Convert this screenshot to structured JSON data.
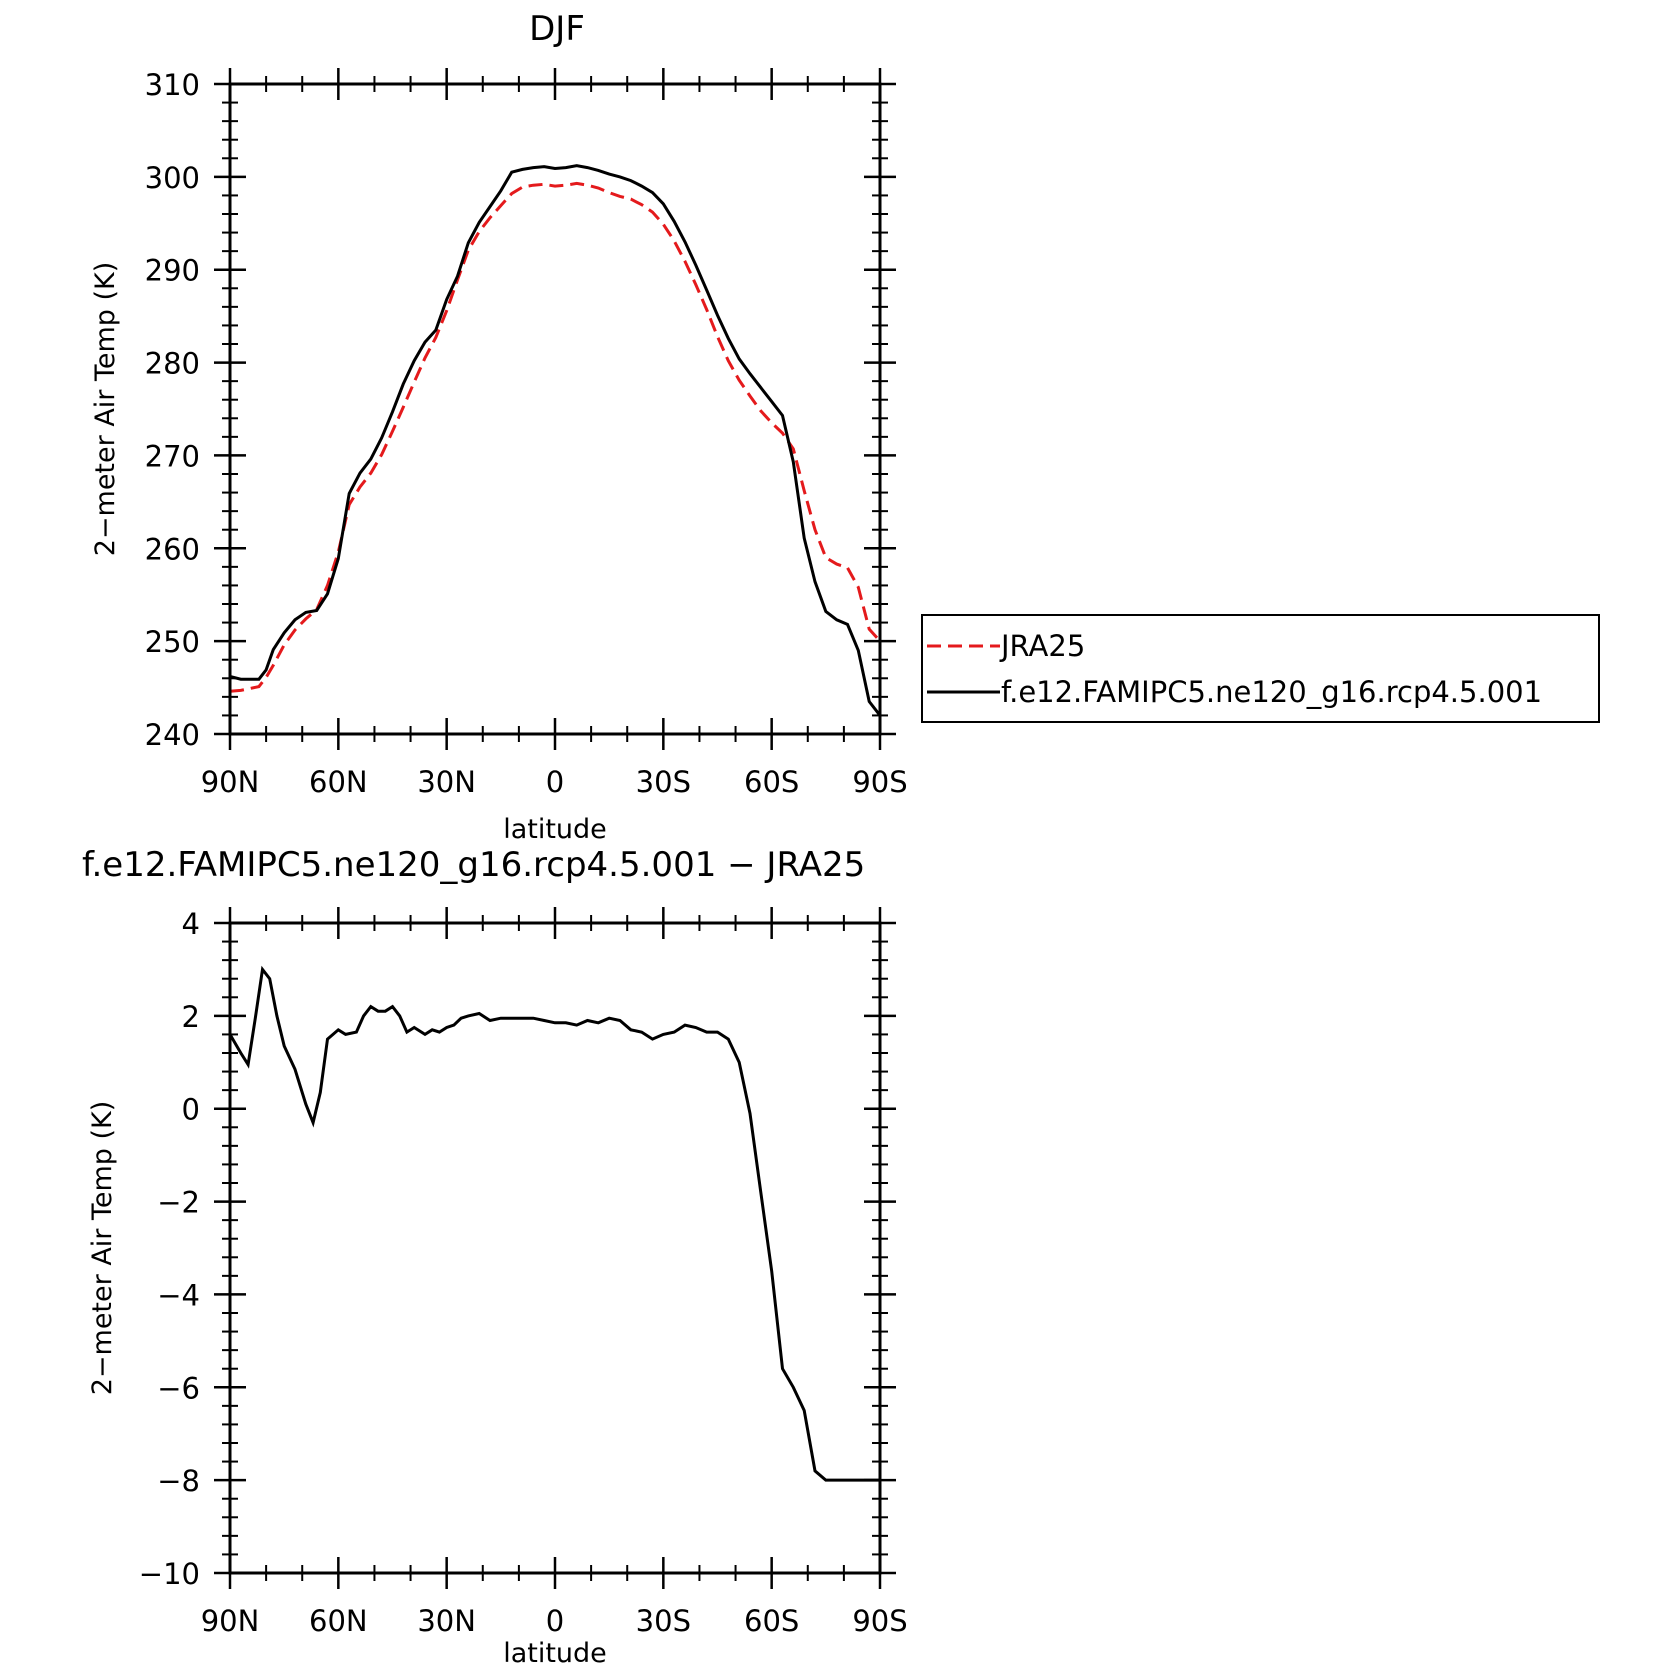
{
  "chart_data": [
    {
      "type": "line",
      "title": "DJF",
      "xlabel": "latitude",
      "ylabel": "2−meter Air Temp (K)",
      "xlim": [
        90,
        -90
      ],
      "ylim": [
        240,
        310
      ],
      "xticks": [
        90,
        60,
        30,
        0,
        -30,
        -60,
        -90
      ],
      "xtick_labels": [
        "90N",
        "60N",
        "30N",
        "0",
        "30S",
        "60S",
        "90S"
      ],
      "yticks": [
        240,
        250,
        260,
        270,
        280,
        290,
        300,
        310
      ],
      "ytick_labels": [
        "240",
        "250",
        "260",
        "270",
        "280",
        "290",
        "300",
        "310"
      ],
      "legend_position": "right",
      "series": [
        {
          "name": "JRA25",
          "color": "#e41a1c",
          "dash": "dashed",
          "x": [
            90,
            87,
            82,
            80,
            78,
            75,
            72,
            69,
            66,
            63,
            60,
            57,
            54,
            51,
            48,
            45,
            42,
            39,
            36,
            33,
            30,
            27,
            24,
            21,
            18,
            15,
            12,
            9,
            6,
            3,
            0,
            -3,
            -6,
            -9,
            -12,
            -15,
            -18,
            -21,
            -24,
            -27,
            -30,
            -33,
            -36,
            -39,
            -42,
            -45,
            -48,
            -51,
            -54,
            -57,
            -60,
            -63,
            -66,
            -69,
            -72,
            -75,
            -78,
            -81,
            -84,
            -87,
            -90
          ],
          "y": [
            244.6,
            244.7,
            245.1,
            246.1,
            247.4,
            249.6,
            251.2,
            252.4,
            253.4,
            256.0,
            259.6,
            264.7,
            266.6,
            268.1,
            270.1,
            272.6,
            275.2,
            277.9,
            280.5,
            282.7,
            285.6,
            288.9,
            292.1,
            294.1,
            295.6,
            296.9,
            298.2,
            298.9,
            299.1,
            299.2,
            299.0,
            299.1,
            299.3,
            299.1,
            298.8,
            298.3,
            297.9,
            297.6,
            297.0,
            296.2,
            294.9,
            293.1,
            290.9,
            288.4,
            285.7,
            282.8,
            280.2,
            278.1,
            276.4,
            274.8,
            273.5,
            272.4,
            270.7,
            266.2,
            262.0,
            259.0,
            258.3,
            257.9,
            255.8,
            251.3,
            250.0
          ]
        },
        {
          "name": "f.e12.FAMIPC5.ne120_g16.rcp4.5.001",
          "color": "#000000",
          "dash": "solid",
          "x": [
            90,
            87,
            82,
            80,
            78,
            75,
            72,
            69,
            66,
            63,
            60,
            57,
            54,
            51,
            48,
            45,
            42,
            39,
            36,
            33,
            30,
            27,
            24,
            21,
            18,
            15,
            12,
            9,
            6,
            3,
            0,
            -3,
            -6,
            -9,
            -12,
            -15,
            -18,
            -21,
            -24,
            -27,
            -30,
            -33,
            -36,
            -39,
            -42,
            -45,
            -48,
            -51,
            -54,
            -57,
            -60,
            -63,
            -66,
            -69,
            -72,
            -75,
            -78,
            -81,
            -84,
            -87,
            -90
          ],
          "y": [
            246.2,
            245.9,
            245.9,
            246.9,
            249.1,
            250.9,
            252.3,
            253.1,
            253.3,
            255.1,
            258.9,
            265.9,
            268.1,
            269.6,
            271.9,
            274.7,
            277.7,
            280.2,
            282.2,
            283.5,
            286.8,
            289.3,
            292.9,
            295.1,
            296.8,
            298.5,
            300.5,
            300.8,
            301.0,
            301.1,
            300.9,
            301.0,
            301.2,
            301.0,
            300.7,
            300.3,
            300.0,
            299.6,
            299.0,
            298.3,
            297.1,
            295.2,
            293.0,
            290.5,
            287.8,
            285.1,
            282.6,
            280.4,
            278.8,
            277.3,
            275.8,
            274.3,
            269.3,
            261.1,
            256.4,
            253.2,
            252.3,
            251.8,
            249.0,
            243.5,
            242.0
          ]
        }
      ]
    },
    {
      "type": "line",
      "title": "f.e12.FAMIPC5.ne120_g16.rcp4.5.001 − JRA25",
      "xlabel": "latitude",
      "ylabel": "2−meter Air Temp (K)",
      "xlim": [
        90,
        -90
      ],
      "ylim": [
        -10,
        4
      ],
      "xticks": [
        90,
        60,
        30,
        0,
        -30,
        -60,
        -90
      ],
      "xtick_labels": [
        "90N",
        "60N",
        "30N",
        "0",
        "30S",
        "60S",
        "90S"
      ],
      "yticks": [
        -10,
        -8,
        -6,
        -4,
        -2,
        0,
        2,
        4
      ],
      "ytick_labels": [
        "−10",
        "−8",
        "−6",
        "−4",
        "−2",
        "0",
        "2",
        "4"
      ],
      "series": [
        {
          "color": "#000000",
          "dash": "solid",
          "x": [
            90,
            87,
            85,
            83,
            81,
            79,
            77,
            75,
            72,
            69,
            67,
            65,
            63,
            60,
            58,
            55,
            53,
            51,
            49,
            47,
            45,
            43,
            41,
            39,
            36,
            34,
            32,
            30,
            28,
            26,
            24,
            21,
            18,
            15,
            12,
            9,
            6,
            3,
            0,
            -3,
            -6,
            -9,
            -12,
            -15,
            -18,
            -21,
            -24,
            -27,
            -30,
            -33,
            -36,
            -39,
            -42,
            -45,
            -48,
            -51,
            -54,
            -57,
            -60,
            -63,
            -66,
            -69,
            -72,
            -75,
            -78,
            -81,
            -84,
            -87,
            -90
          ],
          "y": [
            1.6,
            1.2,
            0.95,
            1.95,
            3.0,
            2.8,
            2.0,
            1.35,
            0.85,
            0.1,
            -0.3,
            0.35,
            1.5,
            1.7,
            1.6,
            1.65,
            2.0,
            2.2,
            2.1,
            2.1,
            2.2,
            2.0,
            1.65,
            1.75,
            1.6,
            1.7,
            1.65,
            1.75,
            1.8,
            1.95,
            2.0,
            2.05,
            1.9,
            1.95,
            1.95,
            1.95,
            1.95,
            1.9,
            1.85,
            1.85,
            1.8,
            1.9,
            1.85,
            1.95,
            1.9,
            1.7,
            1.65,
            1.5,
            1.6,
            1.65,
            1.8,
            1.75,
            1.65,
            1.65,
            1.5,
            1.0,
            -0.1,
            -1.8,
            -3.5,
            -5.6,
            -6.0,
            -6.5,
            -7.8,
            -8.0,
            -8.0,
            -8.0,
            -8.0,
            -8.0,
            -8.0
          ]
        }
      ]
    }
  ]
}
